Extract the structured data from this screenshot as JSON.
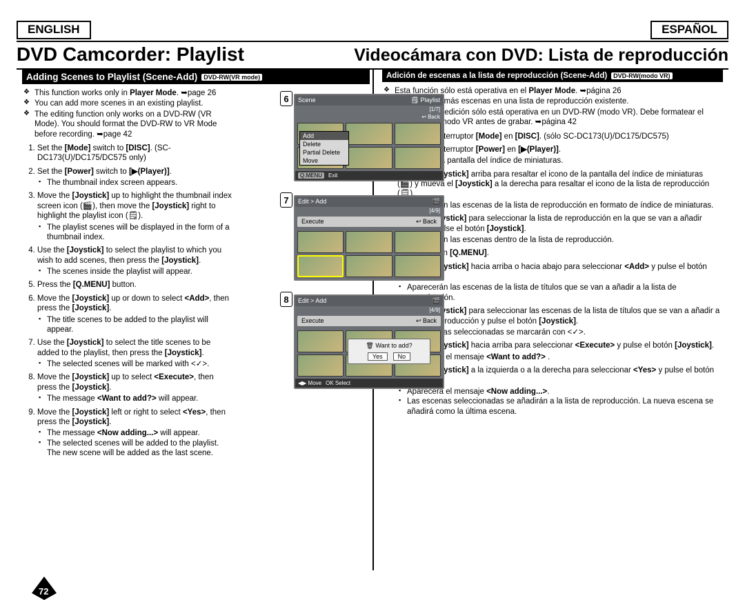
{
  "lang": {
    "en": "ENGLISH",
    "es": "ESPAÑOL"
  },
  "titles": {
    "en": "DVD Camcorder: Playlist",
    "es": "Videocámara con DVD: Lista de reproducción"
  },
  "section": {
    "en_title": "Adding Scenes to Playlist (Scene-Add)",
    "en_badge": "DVD-RW(VR mode)",
    "es_title": "Adición de escenas a la lista de reproducción (Scene-Add)",
    "es_badge": "DVD-RW(modo VR)"
  },
  "en_bullets": [
    "This function works only in <b>Player Mode</b>. ➥page 26",
    "You can add more scenes in an existing playlist.",
    "The editing function only works on a DVD-RW (VR Mode). You should format the DVD-RW to VR Mode before recording. ➥page 42"
  ],
  "es_bullets": [
    "Esta función sólo está operativa en el <b>Player Mode</b>. ➥página 26",
    "Puede añadir más escenas en una lista de reproducción existente.",
    "La función de edición sólo está operativa en un DVD-RW (modo VR). Debe formatear el DVD-RW en modo VR antes de grabar. ➥página 42"
  ],
  "en_steps": [
    {
      "t": "Set the <b>[Mode]</b> switch to <b>[DISC]</b>. (SC-DC173(U)/DC175/DC575 only)"
    },
    {
      "t": "Set the <b>[Power]</b> switch to <b>[▶(Player)]</b>.",
      "sub": [
        "The thumbnail index screen appears."
      ]
    },
    {
      "t": "Move the <b>[Joystick]</b> up to highlight the thumbnail index screen icon (🎬), then move the <b>[Joystick]</b> right to highlight the playlist icon (🗒).",
      "sub": [
        "The playlist scenes will be displayed in the form of a thumbnail index."
      ]
    },
    {
      "t": "Use the <b>[Joystick]</b> to select the playlist to which you wish to add scenes, then press the <b>[Joystick]</b>.",
      "sub": [
        "The scenes inside the playlist will appear."
      ]
    },
    {
      "t": "Press the <b>[Q.MENU]</b> button."
    },
    {
      "t": "Move the <b>[Joystick]</b> up or down to select <b>&lt;Add&gt;</b>, then press the <b>[Joystick]</b>.",
      "sub": [
        "The title scenes to be added to the playlist will appear."
      ]
    },
    {
      "t": "Use the <b>[Joystick]</b> to select the title scenes to be added to the playlist, then press the <b>[Joystick]</b>.",
      "sub": [
        "The selected scenes will be marked with &lt;✓&gt;."
      ]
    },
    {
      "t": "Move the <b>[Joystick]</b> up to select <b>&lt;Execute&gt;</b>, then press the <b>[Joystick]</b>.",
      "sub": [
        "The message <b>&lt;Want to add?&gt;</b> will appear."
      ]
    },
    {
      "t": "Move the <b>[Joystick]</b> left or right to select <b>&lt;Yes&gt;</b>, then press the <b>[Joystick]</b>.",
      "sub": [
        "The message <b>&lt;Now adding...&gt;</b> will appear.",
        "The selected scenes will be added to the playlist. The new scene will be added as the last scene."
      ]
    }
  ],
  "es_steps": [
    {
      "t": "Coloque el interruptor <b>[Mode]</b> en <b>[DISC]</b>. (sólo SC-DC173(U)/DC175/DC575)"
    },
    {
      "t": "Coloque el interruptor <b>[Power]</b> en <b>[▶(Player)]</b>.",
      "sub": [
        "Aparece la pantalla del índice de miniaturas."
      ]
    },
    {
      "t": "Mueva el <b>[Joystick]</b> arriba para resaltar el icono de la pantalla del índice de miniaturas (🎬) y mueva el <b>[Joystick]</b> a la derecha para resaltar el icono de la lista de reproducción (🗒).",
      "sub": [
        "Aparecerán las escenas de la lista de reproducción en formato de índice de miniaturas."
      ]
    },
    {
      "t": "Utilice el <b>[Joystick]</b> para seleccionar la lista de reproducción en la que se van a añadir escenas y pulse el botón <b>[Joystick]</b>.",
      "sub": [
        "Aparecerán las escenas dentro de la lista de reproducción."
      ]
    },
    {
      "t": "Pulse el botón <b>[Q.MENU]</b>."
    },
    {
      "t": "Mueva el <b>[Joystick]</b> hacia arriba o hacia abajo para seleccionar <b>&lt;Add&gt;</b> y pulse el botón <b>[Joystick]</b>.",
      "sub": [
        "Aparecerán las escenas de la lista de títulos que se van a añadir a la lista de reproducción."
      ]
    },
    {
      "t": "Utilice el <b>[Joystick]</b> para seleccionar las escenas de la lista de títulos que se van a añadir a la lista de reproducción y pulse el botón <b>[Joystick]</b>.",
      "sub": [
        "Las escenas seleccionadas se marcarán con &lt;✓&gt;."
      ]
    },
    {
      "t": "Mueva el <b>[Joystick]</b> hacia arriba para seleccionar <b>&lt;Execute&gt;</b> y pulse el botón <b>[Joystick]</b>.",
      "sub": [
        "Aparecerá el mensaje <b>&lt;Want to add?&gt;</b> ."
      ]
    },
    {
      "t": "Mueva el <b>[Joystick]</b> a la izquierda o a la derecha para seleccionar <b>&lt;Yes&gt;</b> y pulse el botón <b>[Joystick]</b>.",
      "sub": [
        "Aparecerá el mensaje <b>&lt;Now adding...&gt;</b>.",
        "Las escenas seleccionadas se añadirán a la lista de reproducción. La nueva escena se añadirá como la última escena."
      ]
    }
  ],
  "screens": {
    "s6": {
      "num": "6",
      "top_left": "Scene",
      "top_right": "🗒 Playlist",
      "hdr_right": "[1/7]",
      "back": "↩ Back",
      "menu": [
        "Add",
        "Delete",
        "Partial Delete",
        "Move"
      ],
      "foot_left": "Q.MENU",
      "foot_right": "Exit"
    },
    "s7": {
      "num": "7",
      "top_left": "Edit > Add",
      "exec": "Execute",
      "back": "↩ Back",
      "hdr_right": "[4/9]",
      "foot": ""
    },
    "s8": {
      "num": "8",
      "top_left": "Edit > Add",
      "exec": "Execute",
      "back": "↩ Back",
      "hdr_right": "[4/9]",
      "dialog_icon": "🗑",
      "dialog_text": "Want to add?",
      "yes": "Yes",
      "no": "No",
      "foot_l": "◀▶ Move",
      "foot_r": "OK Select"
    }
  },
  "page_number": "72"
}
